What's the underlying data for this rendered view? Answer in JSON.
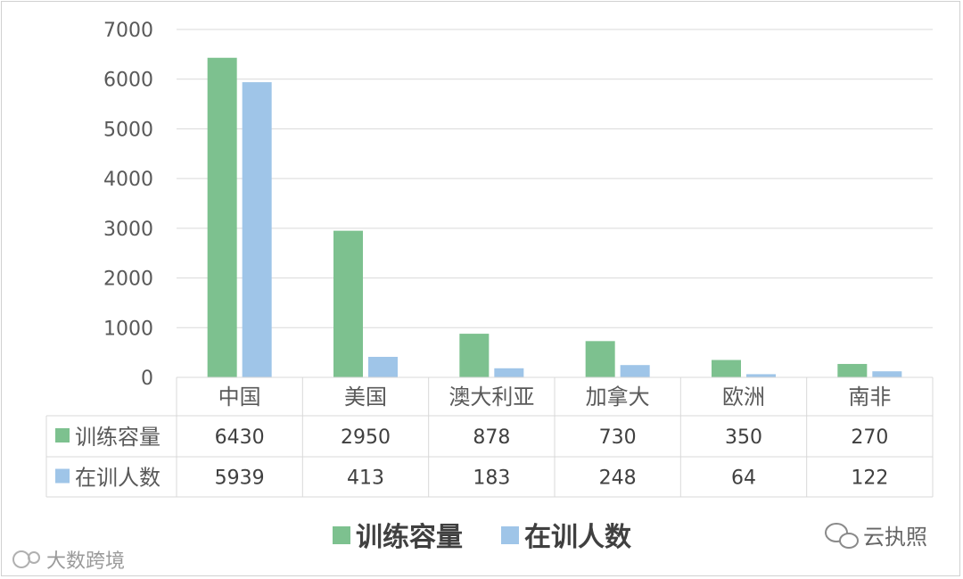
{
  "chart_data": {
    "type": "bar",
    "categories": [
      "中国",
      "美国",
      "澳大利亚",
      "加拿大",
      "欧洲",
      "南非"
    ],
    "series": [
      {
        "name": "训练容量",
        "values": [
          6430,
          2950,
          878,
          730,
          350,
          270
        ],
        "color": "#7dc18f"
      },
      {
        "name": "在训人数",
        "values": [
          5939,
          413,
          183,
          248,
          64,
          122
        ],
        "color": "#9fc5e8"
      }
    ],
    "yticks": [
      0,
      1000,
      2000,
      3000,
      4000,
      5000,
      6000,
      7000
    ],
    "ylim": [
      0,
      7000
    ],
    "grid": true,
    "legend": "bottom",
    "data_table": true
  },
  "watermarks": {
    "left": "大数跨境",
    "right": "云执照"
  }
}
